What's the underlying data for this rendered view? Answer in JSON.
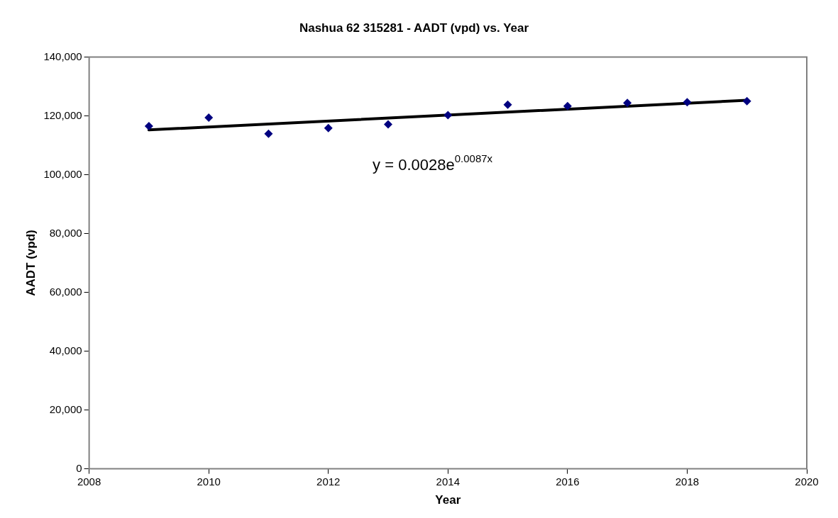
{
  "chart_data": {
    "type": "scatter",
    "title": "Nashua 62 315281 - AADT (vpd) vs. Year",
    "xlabel": "Year",
    "ylabel": "AADT (vpd)",
    "x": [
      2009,
      2010,
      2011,
      2012,
      2013,
      2014,
      2015,
      2016,
      2017,
      2018,
      2019
    ],
    "series": [
      {
        "color": "#000080",
        "marker": "diamond",
        "values": [
          116500,
          119400,
          113900,
          115800,
          117100,
          120200,
          123800,
          123300,
          124400,
          124600,
          125000
        ]
      },
      {
        "type": "line",
        "color": "#000000",
        "marker": "none",
        "x": [
          2009,
          2019
        ],
        "values": [
          115200,
          125300
        ]
      }
    ],
    "xlim": [
      2008,
      2020
    ],
    "xticks": [
      2008,
      2010,
      2012,
      2014,
      2016,
      2018,
      2020
    ],
    "ylim": [
      0,
      140000
    ],
    "yticks": [
      {
        "value": 0,
        "label": "0"
      },
      {
        "value": 20000,
        "label": "20,000"
      },
      {
        "value": 40000,
        "label": "40,000"
      },
      {
        "value": 60000,
        "label": "60,000"
      },
      {
        "value": 80000,
        "label": "80,000"
      },
      {
        "value": 100000,
        "label": "100,000"
      },
      {
        "value": 120000,
        "label": "120,000"
      },
      {
        "value": 140000,
        "label": "140,000"
      }
    ],
    "grid": false,
    "legend": false,
    "annotations": [
      "y = 0.0028e$^{0.0087x}$"
    ]
  }
}
